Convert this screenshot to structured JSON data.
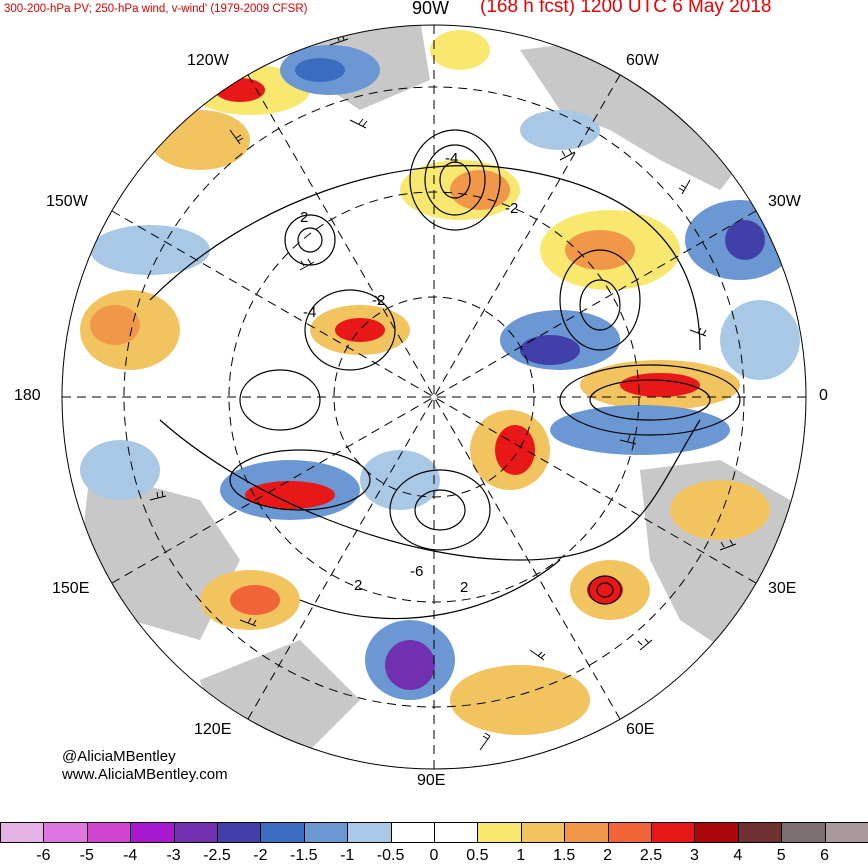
{
  "header": {
    "left_title": "300-200-hPa PV; 250-hPa wind, v-wind' (1979-2009 CFSR)",
    "center_label": "90W",
    "right_title": "(168 h fcst) 1200 UTC 6 May 2018"
  },
  "longitude_labels": {
    "w120": "120W",
    "w60": "60W",
    "w150": "150W",
    "w30": "30W",
    "d180": "180",
    "d0": "0",
    "e150": "150E",
    "e30": "30E",
    "e120": "120E",
    "e60": "60E",
    "e90": "90E"
  },
  "credits": {
    "handle": "@AliciaMBentley",
    "website": "www.AliciaMBentley.com"
  },
  "colorbar": {
    "ticks": [
      "-6",
      "-5",
      "-4",
      "-3",
      "-2.5",
      "-2",
      "-1.5",
      "-1",
      "-0.5",
      "0",
      "0.5",
      "1",
      "1.5",
      "2",
      "2.5",
      "3",
      "4",
      "5",
      "6"
    ],
    "colors": [
      "#e6b3e6",
      "#e077e0",
      "#d046d0",
      "#a718d0",
      "#7030b0",
      "#4040a8",
      "#3a6cc0",
      "#6b98d2",
      "#a8c8e6",
      "#ffffff",
      "#ffffff",
      "#f8e870",
      "#f2c460",
      "#f09848",
      "#f06438",
      "#e81818",
      "#a80808",
      "#6e3030",
      "#7a7070",
      "#a89a9a"
    ]
  },
  "map": {
    "projection": "north polar stereographic",
    "land_color": "#c8c8c8",
    "contour_labels": [
      "-4",
      "-2",
      "2",
      "-2",
      "-4",
      "2",
      "-6",
      "2"
    ]
  }
}
